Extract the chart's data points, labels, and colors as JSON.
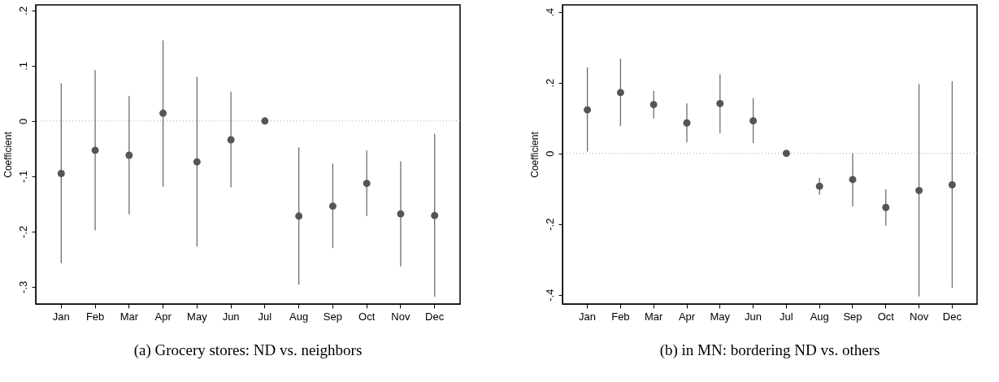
{
  "chart_data": [
    {
      "type": "scatter",
      "title": "(a) Grocery stores: ND vs. neighbors",
      "ylabel": "Coefficient",
      "categories": [
        "Jan",
        "Feb",
        "Mar",
        "Apr",
        "May",
        "Jun",
        "Jul",
        "Aug",
        "Sep",
        "Oct",
        "Nov",
        "Dec"
      ],
      "series": [
        {
          "color": "#555555",
          "values": [
            -0.095,
            -0.053,
            -0.062,
            0.014,
            -0.074,
            -0.034,
            0,
            -0.172,
            -0.154,
            -0.113,
            -0.168,
            -0.171
          ],
          "errors": [
            [
              -0.257,
              0.068
            ],
            [
              -0.198,
              0.092
            ],
            [
              -0.169,
              0.045
            ],
            [
              -0.119,
              0.146
            ],
            [
              -0.227,
              0.08
            ],
            [
              -0.12,
              0.053
            ],
            null,
            [
              -0.296,
              -0.048
            ],
            [
              -0.23,
              -0.077
            ],
            [
              -0.172,
              -0.053
            ],
            [
              -0.263,
              -0.073
            ],
            [
              -0.318,
              -0.023
            ]
          ]
        }
      ],
      "ylim": [
        -0.331,
        0.21
      ],
      "yticks": [
        {
          "value": -0.3,
          "label": "-.3"
        },
        {
          "value": -0.2,
          "label": "-.2"
        },
        {
          "value": -0.1,
          "label": "-.1"
        },
        0,
        {
          "value": 0.1,
          "label": ".1"
        },
        {
          "value": 0.2,
          "label": ".2"
        }
      ],
      "ref_lines": [
        {
          "axis": "y",
          "value": 0,
          "color": "#aaaaaa",
          "line_style": "dotted"
        }
      ],
      "marker": "circle",
      "grid": false
    },
    {
      "type": "scatter",
      "title": "(b) in MN: bordering ND vs. others",
      "ylabel": "Coefficient",
      "categories": [
        "Jan",
        "Feb",
        "Mar",
        "Apr",
        "May",
        "Jun",
        "Jul",
        "Aug",
        "Sep",
        "Oct",
        "Nov",
        "Dec"
      ],
      "series": [
        {
          "color": "#555555",
          "values": [
            0.123,
            0.172,
            0.138,
            0.086,
            0.141,
            0.092,
            0,
            -0.093,
            -0.074,
            -0.153,
            -0.105,
            -0.089
          ],
          "errors": [
            [
              0.005,
              0.243
            ],
            [
              0.077,
              0.268
            ],
            [
              0.099,
              0.177
            ],
            [
              0.031,
              0.141
            ],
            [
              0.057,
              0.224
            ],
            [
              0.029,
              0.156
            ],
            null,
            [
              -0.117,
              -0.069
            ],
            [
              -0.15,
              0
            ],
            [
              -0.205,
              -0.102
            ],
            [
              -0.405,
              0.196
            ],
            [
              -0.38,
              0.204
            ]
          ]
        }
      ],
      "ylim": [
        -0.426,
        0.42
      ],
      "yticks": [
        {
          "value": -0.4,
          "label": "-.4"
        },
        {
          "value": -0.2,
          "label": "-.2"
        },
        0,
        {
          "value": 0.2,
          "label": ".2"
        },
        {
          "value": 0.4,
          "label": ".4"
        }
      ],
      "ref_lines": [
        {
          "axis": "y",
          "value": 0,
          "color": "#aaaaaa",
          "line_style": "dotted"
        }
      ],
      "marker": "circle",
      "grid": false
    }
  ]
}
